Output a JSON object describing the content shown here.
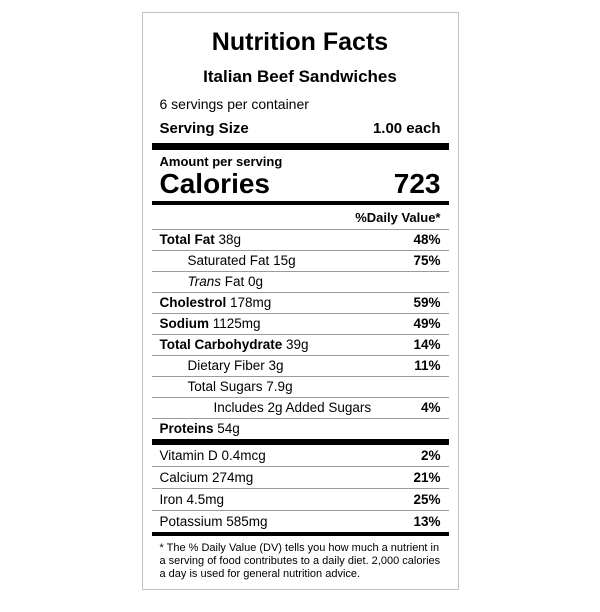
{
  "colors": {
    "text": "#000000",
    "thick_bar": "#000000",
    "thin_rule": "#9b9b9b",
    "box_border": "#c3c3c3",
    "background": "#ffffff"
  },
  "label": {
    "title": "Nutrition Facts",
    "product_name": "Italian Beef Sandwiches",
    "servings_per_container": "6 servings per container",
    "serving_size": {
      "label": "Serving Size",
      "value": "1.00 each"
    },
    "amount_per_serving": "Amount per serving",
    "calories": {
      "label": "Calories",
      "value": "723"
    },
    "daily_value_header": "%Daily Value*",
    "nutrients": [
      {
        "name": "Total Fat",
        "amount": "38g",
        "dv": "48%",
        "bold": true,
        "italic": false,
        "indent": 0
      },
      {
        "name": "Saturated Fat",
        "amount": "15g",
        "dv": "75%",
        "bold": false,
        "italic": false,
        "indent": 1
      },
      {
        "name": "Trans",
        "amount": "Fat 0g",
        "dv": "",
        "bold": false,
        "italic": true,
        "indent": 1
      },
      {
        "name": "Cholestrol",
        "amount": "178mg",
        "dv": "59%",
        "bold": true,
        "italic": false,
        "indent": 0
      },
      {
        "name": "Sodium",
        "amount": "1125mg",
        "dv": "49%",
        "bold": true,
        "italic": false,
        "indent": 0
      },
      {
        "name": "Total Carbohydrate",
        "amount": "39g",
        "dv": "14%",
        "bold": true,
        "italic": false,
        "indent": 0
      },
      {
        "name": "Dietary Fiber",
        "amount": "3g",
        "dv": "11%",
        "bold": false,
        "italic": false,
        "indent": 1
      },
      {
        "name": "Total Sugars",
        "amount": "7.9g",
        "dv": "",
        "bold": false,
        "italic": false,
        "indent": 1
      },
      {
        "name": "Includes 2g Added Sugars",
        "amount": "",
        "dv": "4%",
        "bold": false,
        "italic": false,
        "indent": 2
      },
      {
        "name": "Proteins",
        "amount": "54g",
        "dv": "",
        "bold": true,
        "italic": false,
        "indent": 0
      }
    ],
    "vitamins": [
      {
        "name": "Vitamin D",
        "amount": "0.4mcg",
        "dv": "2%"
      },
      {
        "name": "Calcium",
        "amount": "274mg",
        "dv": "21%"
      },
      {
        "name": "Iron",
        "amount": "4.5mg",
        "dv": "25%"
      },
      {
        "name": "Potassium",
        "amount": "585mg",
        "dv": "13%"
      }
    ],
    "footnote": "* The % Daily Value (DV) tells you how much a nutrient in a serving of food contributes to a daily diet. 2,000 calories a day is used for general nutrition advice."
  }
}
